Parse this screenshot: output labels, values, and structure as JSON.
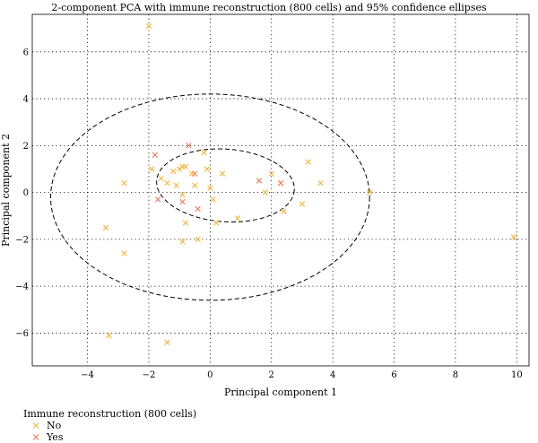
{
  "chart_data": {
    "type": "scatter",
    "title": "2-component PCA with immune reconstruction (800 cells) and 95% confidence ellipses",
    "xlabel": "Principal component 1",
    "ylabel": "Principal component 2",
    "xlim": [
      -5.8,
      10.4
    ],
    "ylim": [
      -7.4,
      7.6
    ],
    "xticks": [
      -4,
      -2,
      0,
      2,
      4,
      6,
      8,
      10
    ],
    "yticks": [
      -6,
      -4,
      -2,
      0,
      2,
      4,
      6
    ],
    "xtick_labels": [
      "−4",
      "−2",
      "0",
      "2",
      "4",
      "6",
      "8",
      "10"
    ],
    "ytick_labels": [
      "−6",
      "−4",
      "−2",
      "0",
      "2",
      "4",
      "6"
    ],
    "grid": true,
    "legend": {
      "title": "Immune reconstruction (800 cells)",
      "placement": "bottom-left",
      "entries": [
        "No",
        "Yes"
      ]
    },
    "series": [
      {
        "name": "No",
        "color": "#f2b53c",
        "marker": "x",
        "points": [
          [
            -2.0,
            7.1
          ],
          [
            -3.3,
            -6.1
          ],
          [
            -1.4,
            -6.4
          ],
          [
            -3.4,
            -1.5
          ],
          [
            -2.8,
            -2.6
          ],
          [
            -2.8,
            0.4
          ],
          [
            -1.9,
            1.0
          ],
          [
            -1.6,
            0.6
          ],
          [
            -1.4,
            0.4
          ],
          [
            -1.2,
            0.9
          ],
          [
            -1.0,
            1.0
          ],
          [
            -0.9,
            1.1
          ],
          [
            -0.8,
            1.1
          ],
          [
            -1.1,
            0.3
          ],
          [
            -0.9,
            -0.1
          ],
          [
            -0.6,
            0.8
          ],
          [
            -0.5,
            0.3
          ],
          [
            -0.2,
            1.7
          ],
          [
            -0.1,
            1.0
          ],
          [
            0.0,
            0.2
          ],
          [
            0.1,
            -0.3
          ],
          [
            0.2,
            -1.3
          ],
          [
            0.4,
            0.8
          ],
          [
            -0.8,
            -1.3
          ],
          [
            -0.9,
            -2.1
          ],
          [
            -0.4,
            -2.0
          ],
          [
            0.9,
            -1.1
          ],
          [
            1.8,
            0.0
          ],
          [
            2.0,
            0.8
          ],
          [
            2.3,
            0.4
          ],
          [
            2.4,
            -0.8
          ],
          [
            3.0,
            -0.5
          ],
          [
            3.2,
            1.3
          ],
          [
            3.6,
            0.4
          ],
          [
            5.2,
            0.0
          ],
          [
            9.9,
            -1.9
          ]
        ]
      },
      {
        "name": "Yes",
        "color": "#e8785a",
        "marker": "x",
        "points": [
          [
            -1.8,
            1.6
          ],
          [
            -0.7,
            2.0
          ],
          [
            -1.7,
            -0.3
          ],
          [
            -0.9,
            -0.4
          ],
          [
            -0.4,
            -0.7
          ],
          [
            -0.5,
            0.8
          ],
          [
            1.6,
            0.5
          ],
          [
            2.3,
            0.4
          ]
        ]
      }
    ],
    "ellipses": [
      {
        "cx": 0.5,
        "cy": 0.3,
        "rx": 2.25,
        "ry": 1.55,
        "angle_deg": -4
      },
      {
        "cx": 0.0,
        "cy": -0.2,
        "rx": 5.2,
        "ry": 4.4,
        "angle_deg": 0
      }
    ]
  }
}
